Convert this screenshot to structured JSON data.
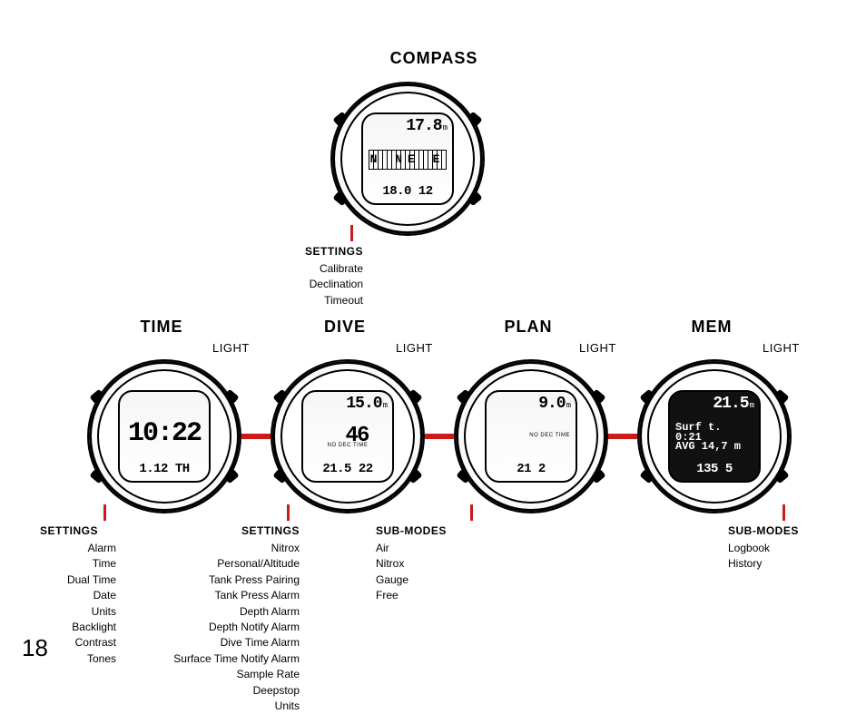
{
  "page_number": "18",
  "colors": {
    "accent": "#cc1a1a"
  },
  "compass": {
    "title": "COMPASS",
    "row1": "17.8",
    "row1_unit": "m",
    "dir": "N NE E",
    "row3": "18.0   12",
    "settings_hdr": "SETTINGS",
    "settings": [
      "Calibrate",
      "Declination",
      "Timeout"
    ]
  },
  "modes": [
    {
      "title": "TIME",
      "light": "LIGHT",
      "row2": "10:22",
      "row3": "1.12  TH",
      "sethdr": "SETTINGS",
      "setlist": [
        "Alarm",
        "Time",
        "Dual Time",
        "Date",
        "Units",
        "Backlight",
        "Contrast",
        "Tones"
      ]
    },
    {
      "title": "DIVE",
      "light": "LIGHT",
      "row1": "15.0",
      "row1_unit": "m",
      "row2": "46",
      "sub": "NO DEC TIME",
      "row3": "21.5  22",
      "sethdr": "SETTINGS",
      "setlist": [
        "Nitrox",
        "Personal/Altitude",
        "Tank Press Pairing",
        "Tank Press Alarm",
        "Depth Alarm",
        "Depth Notify Alarm",
        "Dive Time Alarm",
        "Surface Time Notify Alarm",
        "Sample Rate",
        "Deepstop",
        "Units"
      ]
    },
    {
      "title": "PLAN",
      "light": "LIGHT",
      "row1": "9.0",
      "row1_unit": "m",
      "sub": "NO DEC TIME",
      "row3": "21      2",
      "sethdr": "SUB-MODES",
      "setlist": [
        "Air",
        "Nitrox",
        "Gauge",
        "Free"
      ]
    },
    {
      "title": "MEM",
      "light": "LIGHT",
      "row1": "21.5",
      "row1_unit": "m",
      "row2a": "Surf t. 0:21",
      "row2b": "AVG   14,7 m",
      "row3": "135        5",
      "sethdr": "SUB-MODES",
      "setlist": [
        "Logbook",
        "History"
      ],
      "dark": true
    }
  ]
}
